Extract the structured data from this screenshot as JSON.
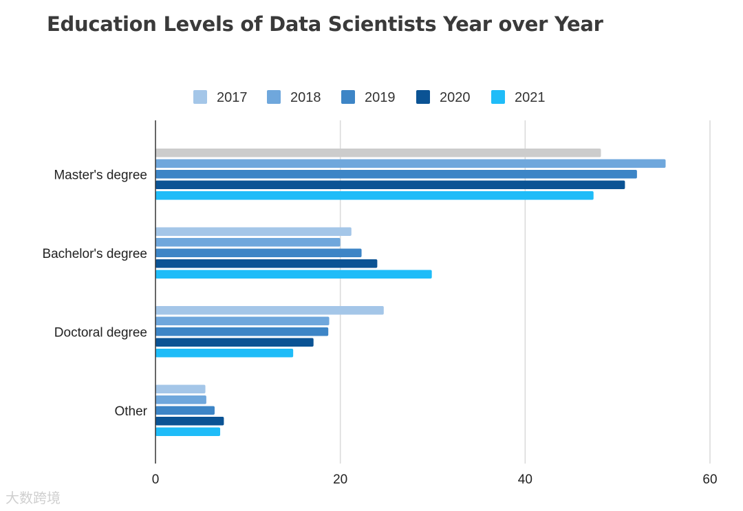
{
  "watermark": "大数跨境",
  "chart_data": {
    "type": "bar",
    "orientation": "horizontal",
    "title": "Education Levels of Data Scientists Year over Year",
    "xlabel": "",
    "ylabel": "",
    "xlim": [
      0,
      60
    ],
    "xticks": [
      0,
      20,
      40,
      60
    ],
    "grid": true,
    "legend_position": "top",
    "categories": [
      "Master's degree",
      "Bachelor's degree",
      "Doctoral degree",
      "Other"
    ],
    "series": [
      {
        "name": "2017",
        "color": "#a4c6e8",
        "values": [
          48.2,
          21.2,
          24.7,
          5.4
        ]
      },
      {
        "name": "2018",
        "color": "#6fa7dc",
        "values": [
          55.2,
          20.0,
          18.8,
          5.5
        ]
      },
      {
        "name": "2019",
        "color": "#3d85c6",
        "values": [
          52.1,
          22.3,
          18.7,
          6.4
        ]
      },
      {
        "name": "2020",
        "color": "#0b5394",
        "values": [
          50.8,
          24.0,
          17.1,
          7.4
        ]
      },
      {
        "name": "2021",
        "color": "#1fbcf8",
        "values": [
          47.4,
          29.9,
          14.9,
          7.0
        ]
      }
    ],
    "notes": "The 2017 bar for Master's degree is rendered in gray.",
    "highlight": {
      "category_index": 0,
      "series_index": 0,
      "color": "#cccccc"
    }
  }
}
